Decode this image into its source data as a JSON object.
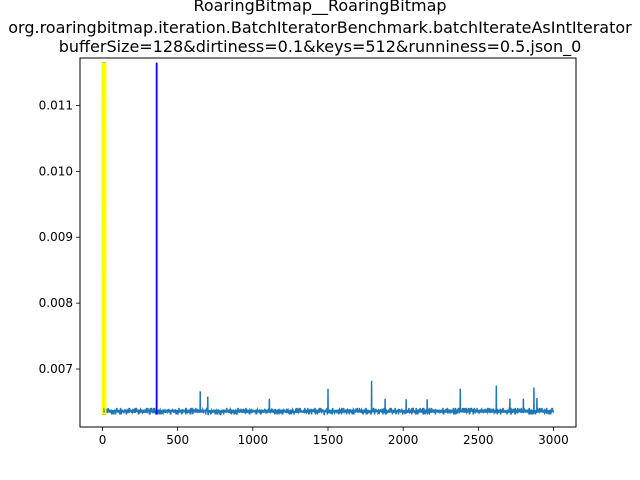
{
  "chart_data": {
    "type": "line",
    "title_lines": [
      "RoaringBitmap__RoaringBitmap",
      "org.roaringbitmap.iteration.BatchIteratorBenchmark.batchIterateAsIntIterator",
      "bufferSize=128&dirtiness=0.1&keys=512&runniness=0.5.json_0"
    ],
    "xlabel": "",
    "ylabel": "",
    "xlim": [
      -150,
      3150
    ],
    "ylim": [
      0.00612,
      0.01172
    ],
    "x_ticks": [
      0,
      500,
      1000,
      1500,
      2000,
      2500,
      3000
    ],
    "y_ticks": [
      0.007,
      0.008,
      0.009,
      0.01,
      0.011
    ],
    "x_tick_labels": [
      "0",
      "500",
      "1000",
      "1500",
      "2000",
      "2500",
      "3000"
    ],
    "y_tick_labels": [
      "0.007",
      "0.008",
      "0.009",
      "0.010",
      "0.011"
    ],
    "series": [
      {
        "color": "#1f77b4",
        "n_points": 3000,
        "baseline": 0.00636,
        "noise_low": 0.00631,
        "noise_high": 0.00641,
        "initial_value": 0.01165,
        "spikes": [
          {
            "x": 650,
            "y": 0.00666
          },
          {
            "x": 700,
            "y": 0.00658
          },
          {
            "x": 1110,
            "y": 0.00655
          },
          {
            "x": 1500,
            "y": 0.0067
          },
          {
            "x": 1790,
            "y": 0.00682
          },
          {
            "x": 1880,
            "y": 0.00655
          },
          {
            "x": 2020,
            "y": 0.00654
          },
          {
            "x": 2160,
            "y": 0.00654
          },
          {
            "x": 2380,
            "y": 0.0067
          },
          {
            "x": 2620,
            "y": 0.00675
          },
          {
            "x": 2710,
            "y": 0.00655
          },
          {
            "x": 2800,
            "y": 0.00655
          },
          {
            "x": 2870,
            "y": 0.00672
          },
          {
            "x": 2890,
            "y": 0.00656
          }
        ]
      }
    ],
    "vertical_markers": [
      {
        "x": 0,
        "color": "#ffff00"
      },
      {
        "x": 20,
        "color": "#ffff00"
      },
      {
        "x": 360,
        "color": "#0000ff"
      }
    ],
    "shaded_span": {
      "x_start": 0,
      "x_end": 20,
      "y_low": 0.00631,
      "y_high": 0.01165,
      "color": "#ffff00",
      "edge_color": "#9a9a3a"
    },
    "grid": false,
    "legend": "none"
  }
}
